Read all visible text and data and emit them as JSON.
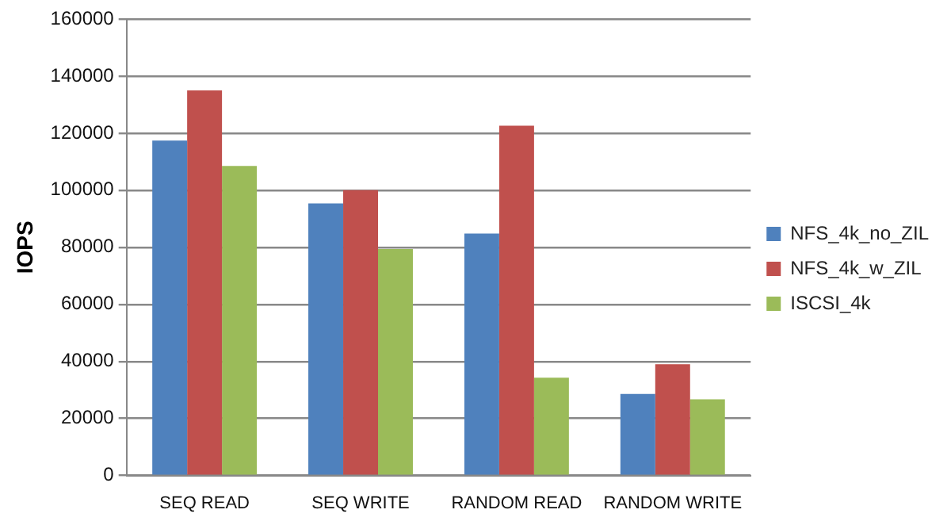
{
  "chart_data": {
    "type": "bar",
    "ylabel": "IOPS",
    "categories": [
      "SEQ READ",
      "SEQ WRITE",
      "RANDOM READ",
      "RANDOM WRITE"
    ],
    "series": [
      {
        "name": "NFS_4k_no_ZIL",
        "color": "#4f81bd",
        "values": [
          117400,
          95400,
          84800,
          28600
        ]
      },
      {
        "name": "NFS_4k_w_ZIL",
        "color": "#c0504d",
        "values": [
          135000,
          100000,
          122600,
          39000
        ]
      },
      {
        "name": "ISCSI_4k",
        "color": "#9bbb59",
        "values": [
          108500,
          79400,
          34300,
          26700
        ]
      }
    ],
    "ylim": [
      0,
      160000
    ],
    "yticks": [
      0,
      20000,
      40000,
      60000,
      80000,
      100000,
      120000,
      140000,
      160000
    ],
    "grid": "y",
    "legend": "right"
  }
}
